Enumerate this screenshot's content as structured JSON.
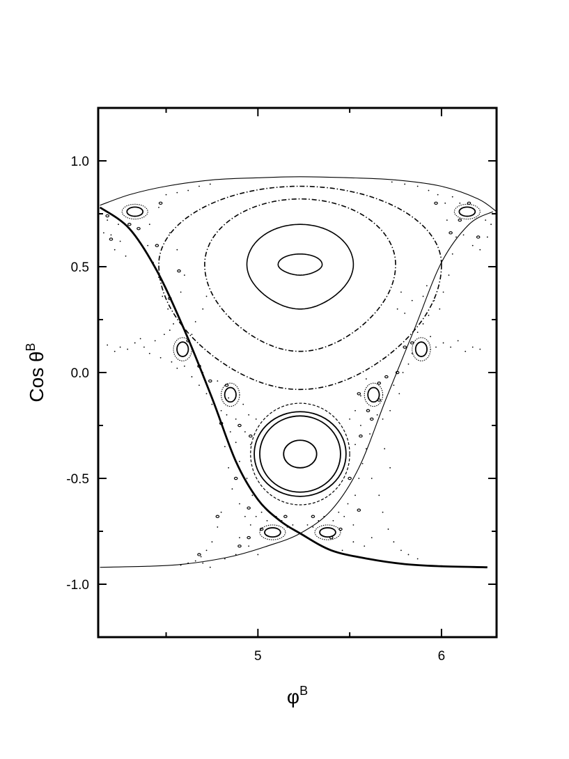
{
  "chart_data": {
    "type": "scatter",
    "title": "",
    "xlabel": {
      "base": "φ",
      "sup": "B"
    },
    "ylabel": {
      "base": "Cos θ",
      "sup": "B"
    },
    "xlim": [
      4.13,
      6.3
    ],
    "ylim": [
      -1.25,
      1.25
    ],
    "x_ticks": [
      {
        "value": 5,
        "label": "5"
      },
      {
        "value": 6,
        "label": "6"
      }
    ],
    "x_minor_ticks": [
      4.5,
      5.5
    ],
    "y_ticks": [
      {
        "value": 1.0,
        "label": "1.0"
      },
      {
        "value": 0.5,
        "label": "0.5"
      },
      {
        "value": 0.0,
        "label": "0.0"
      },
      {
        "value": -0.5,
        "label": "-0.5"
      },
      {
        "value": -1.0,
        "label": "-1.0"
      }
    ],
    "y_minor_ticks": [
      0.75,
      0.25,
      -0.25,
      -0.75
    ],
    "grid": false,
    "legend": "none",
    "curves": [
      {
        "kind": "separatrix-thick",
        "x": [
          4.14,
          4.3,
          4.45,
          4.6,
          4.75,
          4.88,
          5.0,
          5.12,
          5.23,
          5.4,
          5.6,
          5.8,
          6.0,
          6.25
        ],
        "y": [
          0.78,
          0.68,
          0.48,
          0.2,
          -0.12,
          -0.42,
          -0.6,
          -0.7,
          -0.76,
          -0.84,
          -0.88,
          -0.905,
          -0.915,
          -0.92
        ]
      },
      {
        "kind": "separatrix-thin",
        "x": [
          4.14,
          4.4,
          4.6,
          4.85,
          5.05,
          5.23,
          5.4,
          5.55,
          5.7,
          5.85,
          6.0,
          6.15,
          6.28
        ],
        "y": [
          -0.92,
          -0.915,
          -0.905,
          -0.87,
          -0.82,
          -0.76,
          -0.65,
          -0.45,
          -0.12,
          0.2,
          0.52,
          0.7,
          0.76
        ]
      },
      {
        "kind": "boundary-top",
        "x": [
          4.14,
          4.3,
          4.5,
          4.75,
          5.0,
          5.23,
          5.5,
          5.75,
          6.0,
          6.2,
          6.3
        ],
        "y": [
          0.79,
          0.84,
          0.88,
          0.91,
          0.92,
          0.925,
          0.92,
          0.91,
          0.88,
          0.82,
          0.76
        ]
      }
    ],
    "upper_island": {
      "center": [
        5.23,
        0.51
      ],
      "orbits": [
        {
          "rx": 0.12,
          "ry_top": 0.05,
          "ry_bottom": 0.05,
          "style": "solid"
        },
        {
          "rx": 0.29,
          "ry_top": 0.19,
          "ry_bottom": 0.21,
          "style": "solid"
        },
        {
          "rx": 0.52,
          "ry_top": 0.31,
          "ry_bottom": 0.41,
          "style": "dashdot"
        },
        {
          "rx": 0.77,
          "ry_top": 0.37,
          "ry_bottom": 0.59,
          "style": "dashdot"
        }
      ]
    },
    "lower_island": {
      "center": [
        5.23,
        -0.385
      ],
      "orbits": [
        {
          "rx": 0.09,
          "ry": 0.065,
          "style": "solid"
        },
        {
          "rx": 0.22,
          "ry": 0.18,
          "style": "solid"
        },
        {
          "rx": 0.25,
          "ry": 0.2,
          "style": "solid"
        },
        {
          "rx": 0.27,
          "ry": 0.24,
          "style": "dashed"
        }
      ]
    },
    "small_islands": [
      {
        "x": 4.33,
        "y": 0.76,
        "rx": 0.07,
        "ry": 0.035
      },
      {
        "x": 6.14,
        "y": 0.76,
        "rx": 0.07,
        "ry": 0.035
      },
      {
        "x": 4.59,
        "y": 0.11,
        "rx": 0.05,
        "ry": 0.055
      },
      {
        "x": 5.89,
        "y": 0.11,
        "rx": 0.05,
        "ry": 0.055
      },
      {
        "x": 4.85,
        "y": -0.105,
        "rx": 0.05,
        "ry": 0.055
      },
      {
        "x": 5.63,
        "y": -0.105,
        "rx": 0.05,
        "ry": 0.055
      },
      {
        "x": 5.08,
        "y": -0.755,
        "rx": 0.07,
        "ry": 0.035
      },
      {
        "x": 5.38,
        "y": -0.755,
        "rx": 0.07,
        "ry": 0.035
      }
    ],
    "chaotic_points": [
      [
        4.18,
        0.72
      ],
      [
        4.2,
        0.65
      ],
      [
        4.22,
        0.58
      ],
      [
        4.25,
        0.62
      ],
      [
        4.28,
        0.55
      ],
      [
        4.16,
        0.66
      ],
      [
        4.24,
        0.7
      ],
      [
        4.4,
        0.6
      ],
      [
        4.43,
        0.52
      ],
      [
        4.46,
        0.45
      ],
      [
        4.48,
        0.36
      ],
      [
        4.51,
        0.3
      ],
      [
        4.54,
        0.23
      ],
      [
        4.41,
        0.7
      ],
      [
        4.46,
        0.78
      ],
      [
        4.5,
        0.84
      ],
      [
        4.56,
        0.85
      ],
      [
        4.62,
        0.86
      ],
      [
        4.68,
        0.88
      ],
      [
        4.74,
        0.89
      ],
      [
        4.52,
        0.66
      ],
      [
        4.56,
        0.58
      ],
      [
        4.6,
        0.46
      ],
      [
        4.49,
        0.18
      ],
      [
        4.52,
        0.2
      ],
      [
        4.44,
        0.15
      ],
      [
        4.38,
        0.12
      ],
      [
        4.33,
        0.14
      ],
      [
        4.29,
        0.11
      ],
      [
        4.25,
        0.12
      ],
      [
        4.22,
        0.1
      ],
      [
        4.18,
        0.13
      ],
      [
        4.36,
        0.16
      ],
      [
        4.41,
        0.09
      ],
      [
        4.47,
        0.07
      ],
      [
        4.53,
        0.05
      ],
      [
        4.56,
        0.02
      ],
      [
        4.6,
        0.03
      ],
      [
        4.64,
        -0.02
      ],
      [
        4.68,
        -0.06
      ],
      [
        4.7,
        0.0
      ],
      [
        4.72,
        -0.1
      ],
      [
        4.75,
        -0.15
      ],
      [
        4.78,
        -0.04
      ],
      [
        4.8,
        -0.18
      ],
      [
        4.83,
        -0.2
      ],
      [
        4.88,
        -0.22
      ],
      [
        4.92,
        -0.15
      ],
      [
        4.95,
        -0.2
      ],
      [
        4.99,
        -0.22
      ],
      [
        4.93,
        -0.28
      ],
      [
        4.96,
        -0.34
      ],
      [
        4.88,
        -0.33
      ],
      [
        4.85,
        -0.28
      ],
      [
        4.82,
        -0.35
      ],
      [
        4.9,
        -0.42
      ],
      [
        4.94,
        -0.5
      ],
      [
        4.97,
        -0.58
      ],
      [
        4.84,
        -0.45
      ],
      [
        4.86,
        -0.55
      ],
      [
        4.9,
        -0.62
      ],
      [
        4.93,
        -0.68
      ],
      [
        4.96,
        -0.72
      ],
      [
        4.8,
        -0.66
      ],
      [
        4.78,
        -0.73
      ],
      [
        4.75,
        -0.8
      ],
      [
        4.72,
        -0.84
      ],
      [
        4.69,
        -0.87
      ],
      [
        4.66,
        -0.89
      ],
      [
        4.62,
        -0.9
      ],
      [
        4.58,
        -0.91
      ],
      [
        4.99,
        -0.68
      ],
      [
        5.02,
        -0.66
      ],
      [
        5.05,
        -0.7
      ],
      [
        5.1,
        -0.68
      ],
      [
        5.13,
        -0.7
      ],
      [
        5.16,
        -0.73
      ],
      [
        5.19,
        -0.72
      ],
      [
        5.27,
        -0.72
      ],
      [
        5.3,
        -0.73
      ],
      [
        5.33,
        -0.7
      ],
      [
        5.36,
        -0.68
      ],
      [
        5.41,
        -0.7
      ],
      [
        5.44,
        -0.66
      ],
      [
        5.47,
        -0.68
      ],
      [
        5.52,
        -0.72
      ],
      [
        5.49,
        -0.62
      ],
      [
        5.53,
        -0.58
      ],
      [
        5.55,
        -0.5
      ],
      [
        5.57,
        -0.43
      ],
      [
        5.59,
        -0.36
      ],
      [
        5.61,
        -0.29
      ],
      [
        5.53,
        -0.34
      ],
      [
        5.56,
        -0.25
      ],
      [
        5.5,
        -0.22
      ],
      [
        5.53,
        -0.18
      ],
      [
        5.56,
        -0.11
      ],
      [
        5.59,
        -0.03
      ],
      [
        5.65,
        -0.2
      ],
      [
        5.68,
        -0.22
      ],
      [
        5.72,
        -0.18
      ],
      [
        5.74,
        -0.06
      ],
      [
        5.77,
        -0.1
      ],
      [
        5.79,
        0.0
      ],
      [
        5.82,
        0.04
      ],
      [
        5.84,
        0.09
      ],
      [
        5.87,
        0.19
      ],
      [
        5.9,
        0.23
      ],
      [
        5.94,
        0.17
      ],
      [
        5.97,
        0.12
      ],
      [
        6.01,
        0.14
      ],
      [
        6.05,
        0.12
      ],
      [
        6.09,
        0.15
      ],
      [
        6.13,
        0.1
      ],
      [
        6.17,
        0.12
      ],
      [
        6.21,
        0.11
      ],
      [
        5.93,
        0.27
      ],
      [
        5.96,
        0.34
      ],
      [
        5.99,
        0.3
      ],
      [
        6.01,
        0.38
      ],
      [
        6.04,
        0.46
      ],
      [
        6.06,
        0.56
      ],
      [
        6.08,
        0.64
      ],
      [
        6.12,
        0.65
      ],
      [
        6.17,
        0.6
      ],
      [
        6.21,
        0.58
      ],
      [
        6.25,
        0.64
      ],
      [
        6.27,
        0.7
      ],
      [
        6.24,
        0.72
      ],
      [
        6.03,
        0.72
      ],
      [
        6.02,
        0.8
      ],
      [
        5.98,
        0.84
      ],
      [
        5.93,
        0.86
      ],
      [
        5.87,
        0.88
      ],
      [
        5.8,
        0.89
      ],
      [
        5.73,
        0.9
      ],
      [
        6.06,
        0.83
      ],
      [
        6.1,
        0.8
      ],
      [
        5.69,
        -0.36
      ],
      [
        5.72,
        -0.45
      ],
      [
        5.62,
        -0.5
      ],
      [
        5.66,
        -0.58
      ],
      [
        5.68,
        -0.66
      ],
      [
        5.71,
        -0.74
      ],
      [
        5.74,
        -0.8
      ],
      [
        5.78,
        -0.84
      ],
      [
        5.82,
        -0.86
      ],
      [
        5.87,
        -0.88
      ],
      [
        5.62,
        -0.78
      ],
      [
        5.58,
        -0.82
      ],
      [
        5.52,
        -0.8
      ],
      [
        5.46,
        -0.84
      ],
      [
        4.9,
        -0.78
      ],
      [
        4.95,
        -0.82
      ],
      [
        4.88,
        -0.86
      ],
      [
        5.0,
        -0.86
      ],
      [
        4.82,
        -0.88
      ],
      [
        4.74,
        -0.92
      ],
      [
        4.7,
        -0.9
      ],
      [
        4.84,
        -0.12
      ],
      [
        4.64,
        0.18
      ],
      [
        4.66,
        0.24
      ],
      [
        4.7,
        0.3
      ],
      [
        4.72,
        0.36
      ],
      [
        4.58,
        0.38
      ],
      [
        4.54,
        0.32
      ],
      [
        5.8,
        0.28
      ],
      [
        5.84,
        0.34
      ],
      [
        5.78,
        0.38
      ],
      [
        5.76,
        0.3
      ],
      [
        5.9,
        0.36
      ],
      [
        5.92,
        0.41
      ]
    ],
    "chaotic_dots_heavy": [
      [
        4.2,
        0.63
      ],
      [
        4.47,
        0.8
      ],
      [
        4.45,
        0.6
      ],
      [
        4.52,
        0.35
      ],
      [
        4.57,
        0.48
      ],
      [
        4.68,
        0.03
      ],
      [
        4.74,
        -0.04
      ],
      [
        4.8,
        -0.24
      ],
      [
        4.9,
        -0.25
      ],
      [
        4.96,
        -0.3
      ],
      [
        4.88,
        -0.5
      ],
      [
        4.95,
        -0.64
      ],
      [
        4.78,
        -0.68
      ],
      [
        4.68,
        -0.86
      ],
      [
        5.55,
        -0.1
      ],
      [
        5.6,
        -0.18
      ],
      [
        5.66,
        -0.13
      ],
      [
        5.7,
        -0.02
      ],
      [
        5.76,
        0.0
      ],
      [
        5.8,
        0.12
      ],
      [
        5.56,
        -0.3
      ],
      [
        5.62,
        -0.22
      ],
      [
        5.5,
        -0.5
      ],
      [
        5.55,
        -0.65
      ],
      [
        5.4,
        -0.78
      ],
      [
        5.45,
        -0.74
      ],
      [
        6.05,
        0.66
      ],
      [
        6.1,
        0.72
      ],
      [
        6.15,
        0.8
      ],
      [
        6.2,
        0.64
      ],
      [
        5.97,
        0.8
      ],
      [
        4.3,
        0.7
      ],
      [
        4.35,
        0.68
      ],
      [
        4.18,
        0.74
      ],
      [
        4.9,
        -0.82
      ],
      [
        4.95,
        -0.78
      ],
      [
        5.02,
        -0.74
      ],
      [
        5.15,
        -0.68
      ],
      [
        5.3,
        -0.68
      ],
      [
        4.62,
        0.15
      ],
      [
        5.84,
        0.14
      ],
      [
        4.83,
        -0.06
      ],
      [
        5.66,
        -0.05
      ]
    ]
  }
}
